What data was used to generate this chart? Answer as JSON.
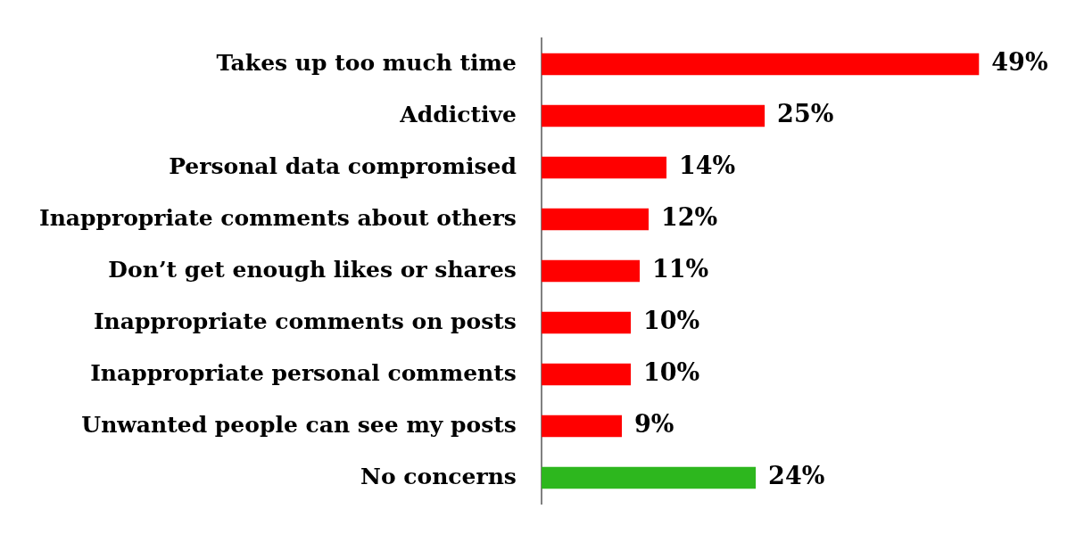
{
  "chart_data": {
    "type": "bar",
    "orientation": "horizontal",
    "categories": [
      "Takes up too much time",
      "Addictive",
      "Personal data compromised",
      "Inappropriate comments about others",
      "Don’t get enough likes or shares",
      "Inappropriate comments on posts",
      "Inappropriate personal comments",
      "Unwanted people can see my posts",
      "No concerns"
    ],
    "values": [
      49,
      25,
      14,
      12,
      11,
      10,
      10,
      9,
      24
    ],
    "value_labels": [
      "49%",
      "25%",
      "14%",
      "12%",
      "11%",
      "10%",
      "10%",
      "9%",
      "24%"
    ],
    "colors": [
      "#ff0000",
      "#ff0000",
      "#ff0000",
      "#ff0000",
      "#ff0000",
      "#ff0000",
      "#ff0000",
      "#ff0000",
      "#2db71e"
    ],
    "grid": false,
    "legend": false,
    "tick_labels": "y"
  }
}
